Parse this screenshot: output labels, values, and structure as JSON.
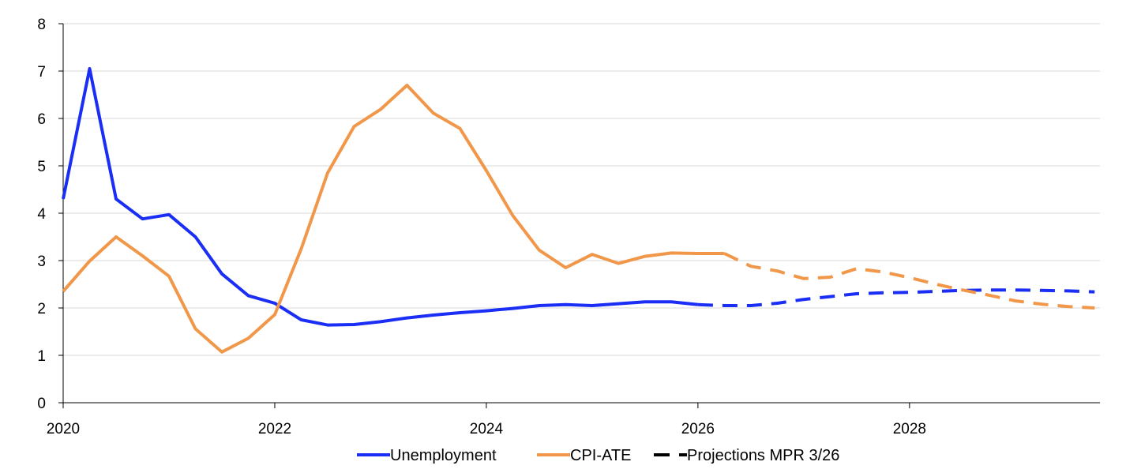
{
  "chart_data": {
    "type": "line",
    "title": "",
    "xlabel": "",
    "ylabel": "",
    "xlim": [
      2020.0,
      2029.8
    ],
    "ylim": [
      0,
      8
    ],
    "x_ticks": [
      "2020",
      "2022",
      "2024",
      "2026",
      "2028"
    ],
    "y_ticks": [
      "0",
      "1",
      "2",
      "3",
      "4",
      "5",
      "6",
      "7",
      "8"
    ],
    "grid": "horizontal",
    "legend_placement": "bottom",
    "colors": {
      "unemployment": "#1a2ef5",
      "cpi_ate": "#f0974a",
      "projection_legend": "#000000"
    },
    "series": [
      {
        "name": "Unemployment",
        "color": "#1a2ef5",
        "points": [
          [
            2020.0,
            4.3
          ],
          [
            2020.25,
            7.05
          ],
          [
            2020.5,
            4.3
          ],
          [
            2020.75,
            3.88
          ],
          [
            2021.0,
            3.97
          ],
          [
            2021.25,
            3.5
          ],
          [
            2021.5,
            2.72
          ],
          [
            2021.75,
            2.26
          ],
          [
            2022.0,
            2.1
          ],
          [
            2022.25,
            1.75
          ],
          [
            2022.5,
            1.64
          ],
          [
            2022.75,
            1.65
          ],
          [
            2023.0,
            1.71
          ],
          [
            2023.25,
            1.79
          ],
          [
            2023.5,
            1.85
          ],
          [
            2023.75,
            1.9
          ],
          [
            2024.0,
            1.94
          ],
          [
            2024.25,
            1.99
          ],
          [
            2024.5,
            2.05
          ],
          [
            2024.75,
            2.07
          ],
          [
            2025.0,
            2.05
          ],
          [
            2025.25,
            2.09
          ],
          [
            2025.5,
            2.13
          ],
          [
            2025.75,
            2.13
          ],
          [
            2026.0,
            2.07
          ]
        ],
        "projection": [
          [
            2026.0,
            2.07
          ],
          [
            2026.25,
            2.05
          ],
          [
            2026.5,
            2.05
          ],
          [
            2026.75,
            2.1
          ],
          [
            2027.0,
            2.18
          ],
          [
            2027.25,
            2.24
          ],
          [
            2027.5,
            2.3
          ],
          [
            2027.75,
            2.32
          ],
          [
            2028.0,
            2.33
          ],
          [
            2028.25,
            2.35
          ],
          [
            2028.5,
            2.37
          ],
          [
            2028.75,
            2.38
          ],
          [
            2029.0,
            2.38
          ],
          [
            2029.25,
            2.37
          ],
          [
            2029.5,
            2.36
          ],
          [
            2029.75,
            2.34
          ]
        ]
      },
      {
        "name": "CPI-ATE",
        "color": "#f0974a",
        "points": [
          [
            2020.0,
            2.35
          ],
          [
            2020.25,
            2.99
          ],
          [
            2020.5,
            3.5
          ],
          [
            2020.75,
            3.1
          ],
          [
            2021.0,
            2.67
          ],
          [
            2021.25,
            1.56
          ],
          [
            2021.5,
            1.07
          ],
          [
            2021.75,
            1.36
          ],
          [
            2022.0,
            1.86
          ],
          [
            2022.25,
            3.25
          ],
          [
            2022.5,
            4.85
          ],
          [
            2022.75,
            5.83
          ],
          [
            2023.0,
            6.19
          ],
          [
            2023.25,
            6.7
          ],
          [
            2023.5,
            6.11
          ],
          [
            2023.75,
            5.79
          ],
          [
            2024.0,
            4.9
          ],
          [
            2024.25,
            3.95
          ],
          [
            2024.5,
            3.22
          ],
          [
            2024.75,
            2.85
          ],
          [
            2025.0,
            3.13
          ],
          [
            2025.25,
            2.94
          ],
          [
            2025.5,
            3.09
          ],
          [
            2025.75,
            3.16
          ],
          [
            2026.0,
            3.15
          ],
          [
            2026.25,
            3.15
          ]
        ],
        "projection": [
          [
            2026.25,
            3.15
          ],
          [
            2026.5,
            2.88
          ],
          [
            2026.75,
            2.78
          ],
          [
            2027.0,
            2.62
          ],
          [
            2027.25,
            2.65
          ],
          [
            2027.5,
            2.83
          ],
          [
            2027.75,
            2.76
          ],
          [
            2028.0,
            2.64
          ],
          [
            2028.25,
            2.5
          ],
          [
            2028.5,
            2.38
          ],
          [
            2028.75,
            2.27
          ],
          [
            2029.0,
            2.15
          ],
          [
            2029.25,
            2.08
          ],
          [
            2029.5,
            2.03
          ],
          [
            2029.75,
            2.0
          ]
        ]
      }
    ],
    "legend": [
      "Unemployment",
      "CPI-ATE",
      "Projections MPR 3/26"
    ]
  }
}
